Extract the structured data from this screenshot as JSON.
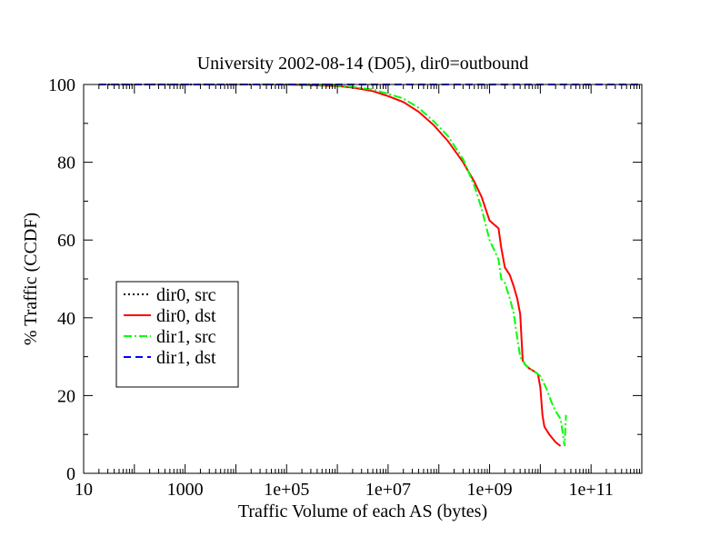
{
  "chart_data": {
    "type": "line",
    "title": "University 2002-08-14 (D05), dir0=outbound",
    "xlabel": "Traffic Volume of each AS (bytes)",
    "ylabel": "% Traffic (CCDF)",
    "x_scale": "log",
    "xlim": [
      10,
      1000000000000
    ],
    "ylim": [
      0,
      100
    ],
    "x_tick_labels": [
      "10",
      "1000",
      "1e+05",
      "1e+07",
      "1e+09",
      "1e+11"
    ],
    "x_tick_values": [
      10,
      1000,
      100000,
      10000000,
      1000000000,
      100000000000
    ],
    "y_tick_labels": [
      "0",
      "20",
      "40",
      "60",
      "80",
      "100"
    ],
    "y_tick_values": [
      0,
      20,
      40,
      60,
      80,
      100
    ],
    "grid": false,
    "legend_position": "left",
    "series": [
      {
        "name": "dir0, src",
        "color": "#000000",
        "style": "dotted",
        "x": [
          20,
          100,
          1000,
          10000,
          100000,
          1000000
        ],
        "y": [
          100,
          100,
          100,
          100,
          100,
          100
        ]
      },
      {
        "name": "dir0, dst",
        "color": "#ff0000",
        "style": "solid",
        "x": [
          100000,
          1000000,
          2000000,
          5000000,
          10000000,
          20000000,
          40000000,
          80000000,
          150000000,
          300000000,
          500000000,
          700000000,
          1000000000,
          1500000000,
          1700000000,
          2000000000,
          2500000000,
          3000000000,
          3500000000,
          4000000000,
          4500000000,
          5000000000,
          6000000000,
          7000000000,
          8000000000,
          9000000000,
          10000000000,
          11000000000,
          12000000000,
          15000000000,
          20000000000,
          25000000000
        ],
        "y": [
          100,
          99.6,
          99.2,
          98.3,
          97,
          95.5,
          93,
          89.5,
          85.5,
          80,
          75,
          71,
          65,
          63,
          58,
          53,
          51,
          48,
          45,
          41,
          29,
          28,
          27,
          26.5,
          26,
          25.5,
          22,
          15,
          12,
          10,
          8,
          7
        ]
      },
      {
        "name": "dir1, src",
        "color": "#00ff00",
        "style": "dash-dot",
        "x": [
          100000,
          1000000,
          2000000,
          5000000,
          10000000,
          20000000,
          40000000,
          80000000,
          150000000,
          300000000,
          500000000,
          700000000,
          1000000000,
          1500000000,
          1700000000,
          2000000000,
          2500000000,
          3000000000,
          3500000000,
          4000000000,
          4500000000,
          5000000000,
          6000000000,
          8000000000,
          10000000000,
          13000000000,
          17000000000,
          20000000000,
          25000000000,
          28000000000,
          30000000000,
          32000000000
        ],
        "y": [
          100,
          99.7,
          99.4,
          98.7,
          97.6,
          96.4,
          94,
          90.5,
          86.8,
          80.8,
          74,
          68,
          60,
          55,
          50,
          49,
          45,
          41,
          35,
          30,
          29,
          28,
          27,
          26,
          25,
          22,
          18,
          16,
          14,
          10,
          7,
          15
        ]
      },
      {
        "name": "dir1, dst",
        "color": "#0000ff",
        "style": "dashed",
        "x": [
          20,
          100,
          1000,
          10000,
          100000,
          1000000,
          10000000,
          100000000,
          1000000000,
          10000000000,
          100000000000,
          1000000000000
        ],
        "y": [
          100,
          100,
          100,
          100,
          100,
          100,
          100,
          100,
          100,
          100,
          100,
          100
        ]
      }
    ]
  }
}
